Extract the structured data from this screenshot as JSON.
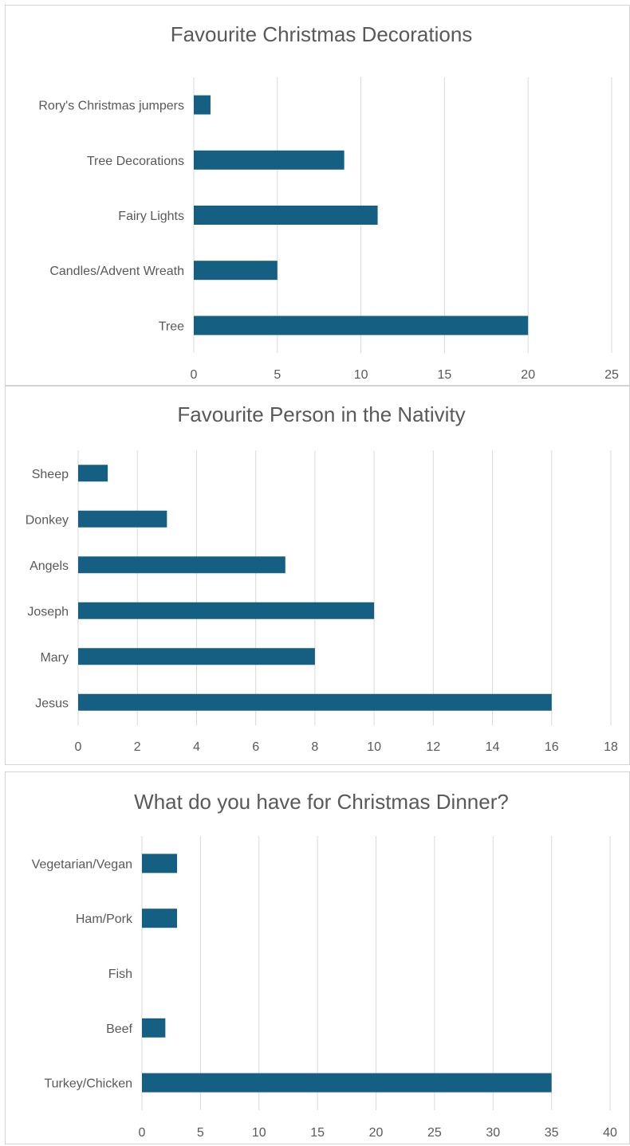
{
  "chart_data": [
    {
      "type": "bar",
      "orientation": "horizontal",
      "title": "Favourite Christmas Decorations",
      "categories": [
        "Rory's Christmas jumpers",
        "Tree Decorations",
        "Fairy Lights",
        "Candles/Advent Wreath",
        "Tree"
      ],
      "values": [
        1,
        9,
        11,
        5,
        20
      ],
      "xlim": [
        0,
        25
      ],
      "ticks": [
        0,
        5,
        10,
        15,
        20,
        25
      ],
      "grid": true,
      "color": "#156082"
    },
    {
      "type": "bar",
      "orientation": "horizontal",
      "title": "Favourite Person in the Nativity",
      "categories": [
        "Sheep",
        "Donkey",
        "Angels",
        "Joseph",
        "Mary",
        "Jesus"
      ],
      "values": [
        1,
        3,
        7,
        10,
        8,
        16
      ],
      "xlim": [
        0,
        18
      ],
      "ticks": [
        0,
        2,
        4,
        6,
        8,
        10,
        12,
        14,
        16,
        18
      ],
      "grid": true,
      "color": "#156082"
    },
    {
      "type": "bar",
      "orientation": "horizontal",
      "title": "What do you have for Christmas Dinner?",
      "categories": [
        "Vegetarian/Vegan",
        "Ham/Pork",
        "Fish",
        "Beef",
        "Turkey/Chicken"
      ],
      "values": [
        3,
        3,
        0,
        2,
        35
      ],
      "xlim": [
        0,
        40
      ],
      "ticks": [
        0,
        5,
        10,
        15,
        20,
        25,
        30,
        35,
        40
      ],
      "grid": true,
      "color": "#156082"
    }
  ]
}
